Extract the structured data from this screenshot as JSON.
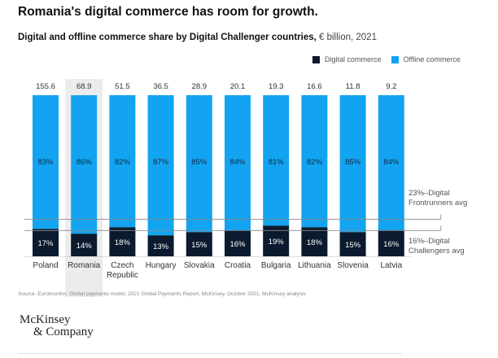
{
  "header": {
    "title": "Romania's digital commerce has room for growth.",
    "subtitle_bold": "Digital and offline commerce share by Digital Challenger countries,",
    "subtitle_unit": " € billion, 2021"
  },
  "colors": {
    "digital": "#0b1a2e",
    "offline": "#12a4f0",
    "highlight": "#ececec",
    "reference_line": "#8a8a8a"
  },
  "chart_data": {
    "type": "bar",
    "stacked": true,
    "title": "Digital and offline commerce share by Digital Challenger countries, € billion, 2021",
    "xlabel": "",
    "ylabel": "",
    "ylim": [
      0,
      100
    ],
    "unit": "% share; totals in € billion",
    "categories": [
      "Poland",
      "Romania",
      "Czech Republic",
      "Hungary",
      "Slovakia",
      "Croatia",
      "Bulgaria",
      "Lithuania",
      "Slovenia",
      "Latvia"
    ],
    "category_labels": [
      [
        "Poland"
      ],
      [
        "Romania"
      ],
      [
        "Czech",
        "Republic"
      ],
      [
        "Hungary"
      ],
      [
        "Slovakia"
      ],
      [
        "Croatia"
      ],
      [
        "Bulgaria"
      ],
      [
        "Lithuania"
      ],
      [
        "Slovenia"
      ],
      [
        "Latvia"
      ]
    ],
    "totals": [
      "155.6",
      "68.9",
      "51.5",
      "36.5",
      "28.9",
      "20.1",
      "19.3",
      "16.6",
      "11.8",
      "9.2"
    ],
    "highlighted_category": "Romania",
    "series": [
      {
        "name": "Digital commerce",
        "values": [
          17,
          14,
          18,
          13,
          15,
          16,
          19,
          18,
          15,
          16
        ],
        "labels": [
          "17%",
          "14%",
          "18%",
          "13%",
          "15%",
          "16%",
          "19%",
          "18%",
          "15%",
          "16%"
        ]
      },
      {
        "name": "Offline commerce",
        "values": [
          83,
          86,
          82,
          87,
          85,
          84,
          81,
          82,
          85,
          84
        ],
        "labels": [
          "83%",
          "86%",
          "82%",
          "87%",
          "85%",
          "84%",
          "81%",
          "82%",
          "85%",
          "84%"
        ]
      }
    ],
    "reference_lines": [
      {
        "value": 23,
        "label_lines": [
          "23%–Digital",
          "Frontrunners avg"
        ]
      },
      {
        "value": 16,
        "label_lines": [
          "16%–Digital",
          "Challengers avg"
        ]
      }
    ],
    "legend": {
      "position": "top-right",
      "entries": [
        "Digital commerce",
        "Offline commerce"
      ]
    },
    "grid": false
  },
  "footer": {
    "source": "Source: Euromonitor; Global payments model; 2021 Global Payments Report, McKinsey, October 2021; McKinsey analysis",
    "logo_line1": "McKinsey",
    "logo_line2": "& Company"
  }
}
